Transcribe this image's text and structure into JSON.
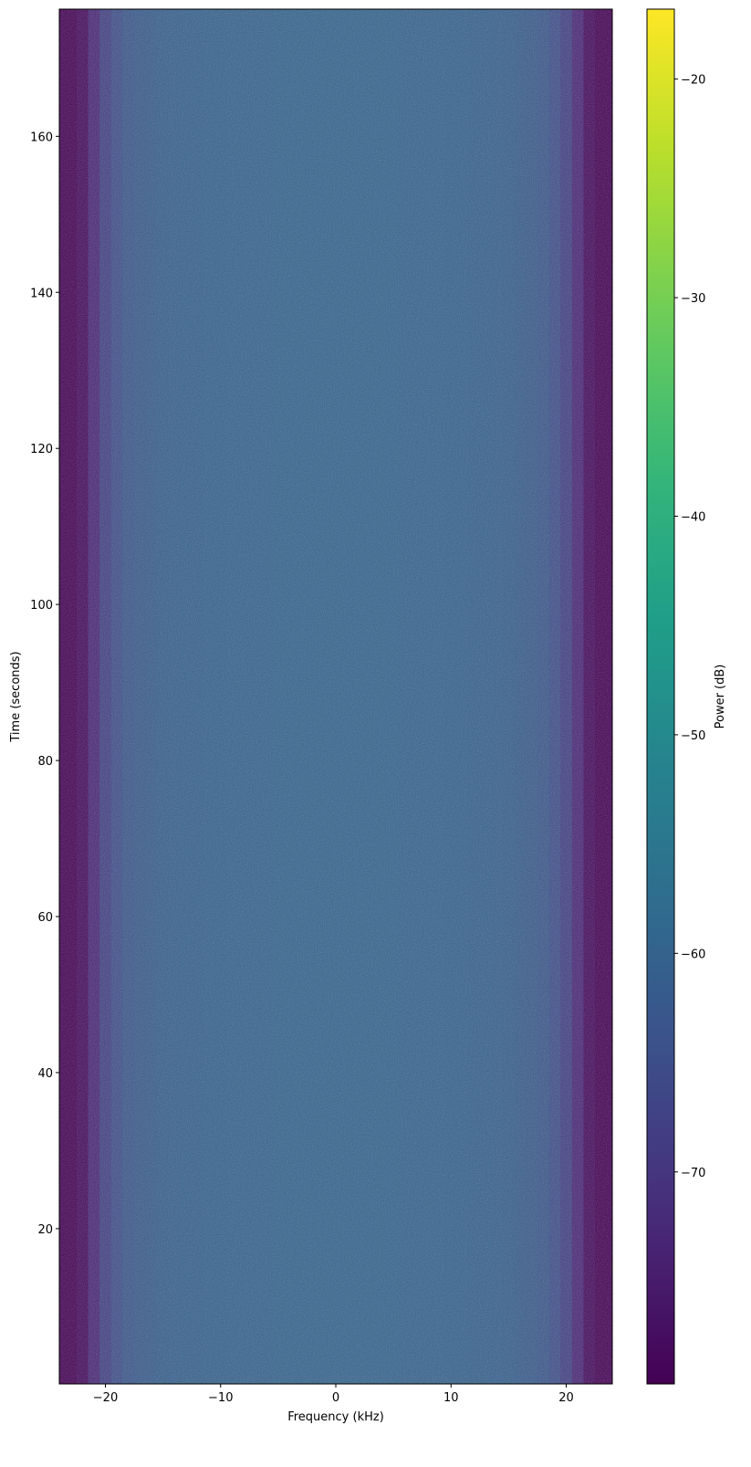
{
  "chart_data": {
    "type": "heatmap",
    "title": "",
    "xlabel": "Frequency (kHz)",
    "ylabel": "Time (seconds)",
    "xlim": [
      -24,
      24
    ],
    "ylim": [
      0.1,
      176.3
    ],
    "xticks": [
      -20,
      -10,
      0,
      10,
      20
    ],
    "xtick_labels": [
      "−20",
      "−10",
      "0",
      "10",
      "20"
    ],
    "yticks": [
      20,
      40,
      60,
      80,
      100,
      120,
      140,
      160
    ],
    "ytick_labels": [
      "20",
      "40",
      "60",
      "80",
      "100",
      "120",
      "140",
      "160"
    ],
    "colormap": "viridis",
    "colorbar": {
      "label": "Power (dB)",
      "range": [
        -79.7,
        -16.8
      ],
      "ticks": [
        -20,
        -30,
        -40,
        -50,
        -60,
        -70
      ],
      "tick_labels": [
        "−20",
        "−30",
        "−40",
        "−50",
        "−60",
        "−70"
      ]
    },
    "frequency_bins_khz": [
      -24,
      -23,
      -22,
      -21,
      -20,
      -19,
      -18,
      -17,
      -16,
      -15,
      -14,
      -13,
      -12,
      -11,
      -10,
      -9,
      -8,
      -7,
      -6,
      -5,
      -4,
      -3,
      -2,
      -1,
      0,
      1,
      2,
      3,
      4,
      5,
      6,
      7,
      8,
      9,
      10,
      11,
      12,
      13,
      14,
      15,
      16,
      17,
      18,
      19,
      20,
      21,
      22,
      23,
      24
    ],
    "mean_power_db": [
      -79.7,
      -79.7,
      -78,
      -73,
      -68,
      -65,
      -63,
      -62,
      -61.5,
      -61,
      -60.8,
      -60.6,
      -60.5,
      -60.4,
      -60.3,
      -60.2,
      -60.2,
      -60.1,
      -60.1,
      -60,
      -60,
      -60,
      -60,
      -60,
      -60,
      -60,
      -60,
      -60,
      -60,
      -60,
      -60.1,
      -60.1,
      -60.2,
      -60.2,
      -60.3,
      -60.4,
      -60.5,
      -60.6,
      -60.8,
      -61,
      -61.5,
      -62,
      -63,
      -65,
      -68,
      -73,
      -78,
      -79.7,
      -79.7
    ],
    "grid": false
  }
}
